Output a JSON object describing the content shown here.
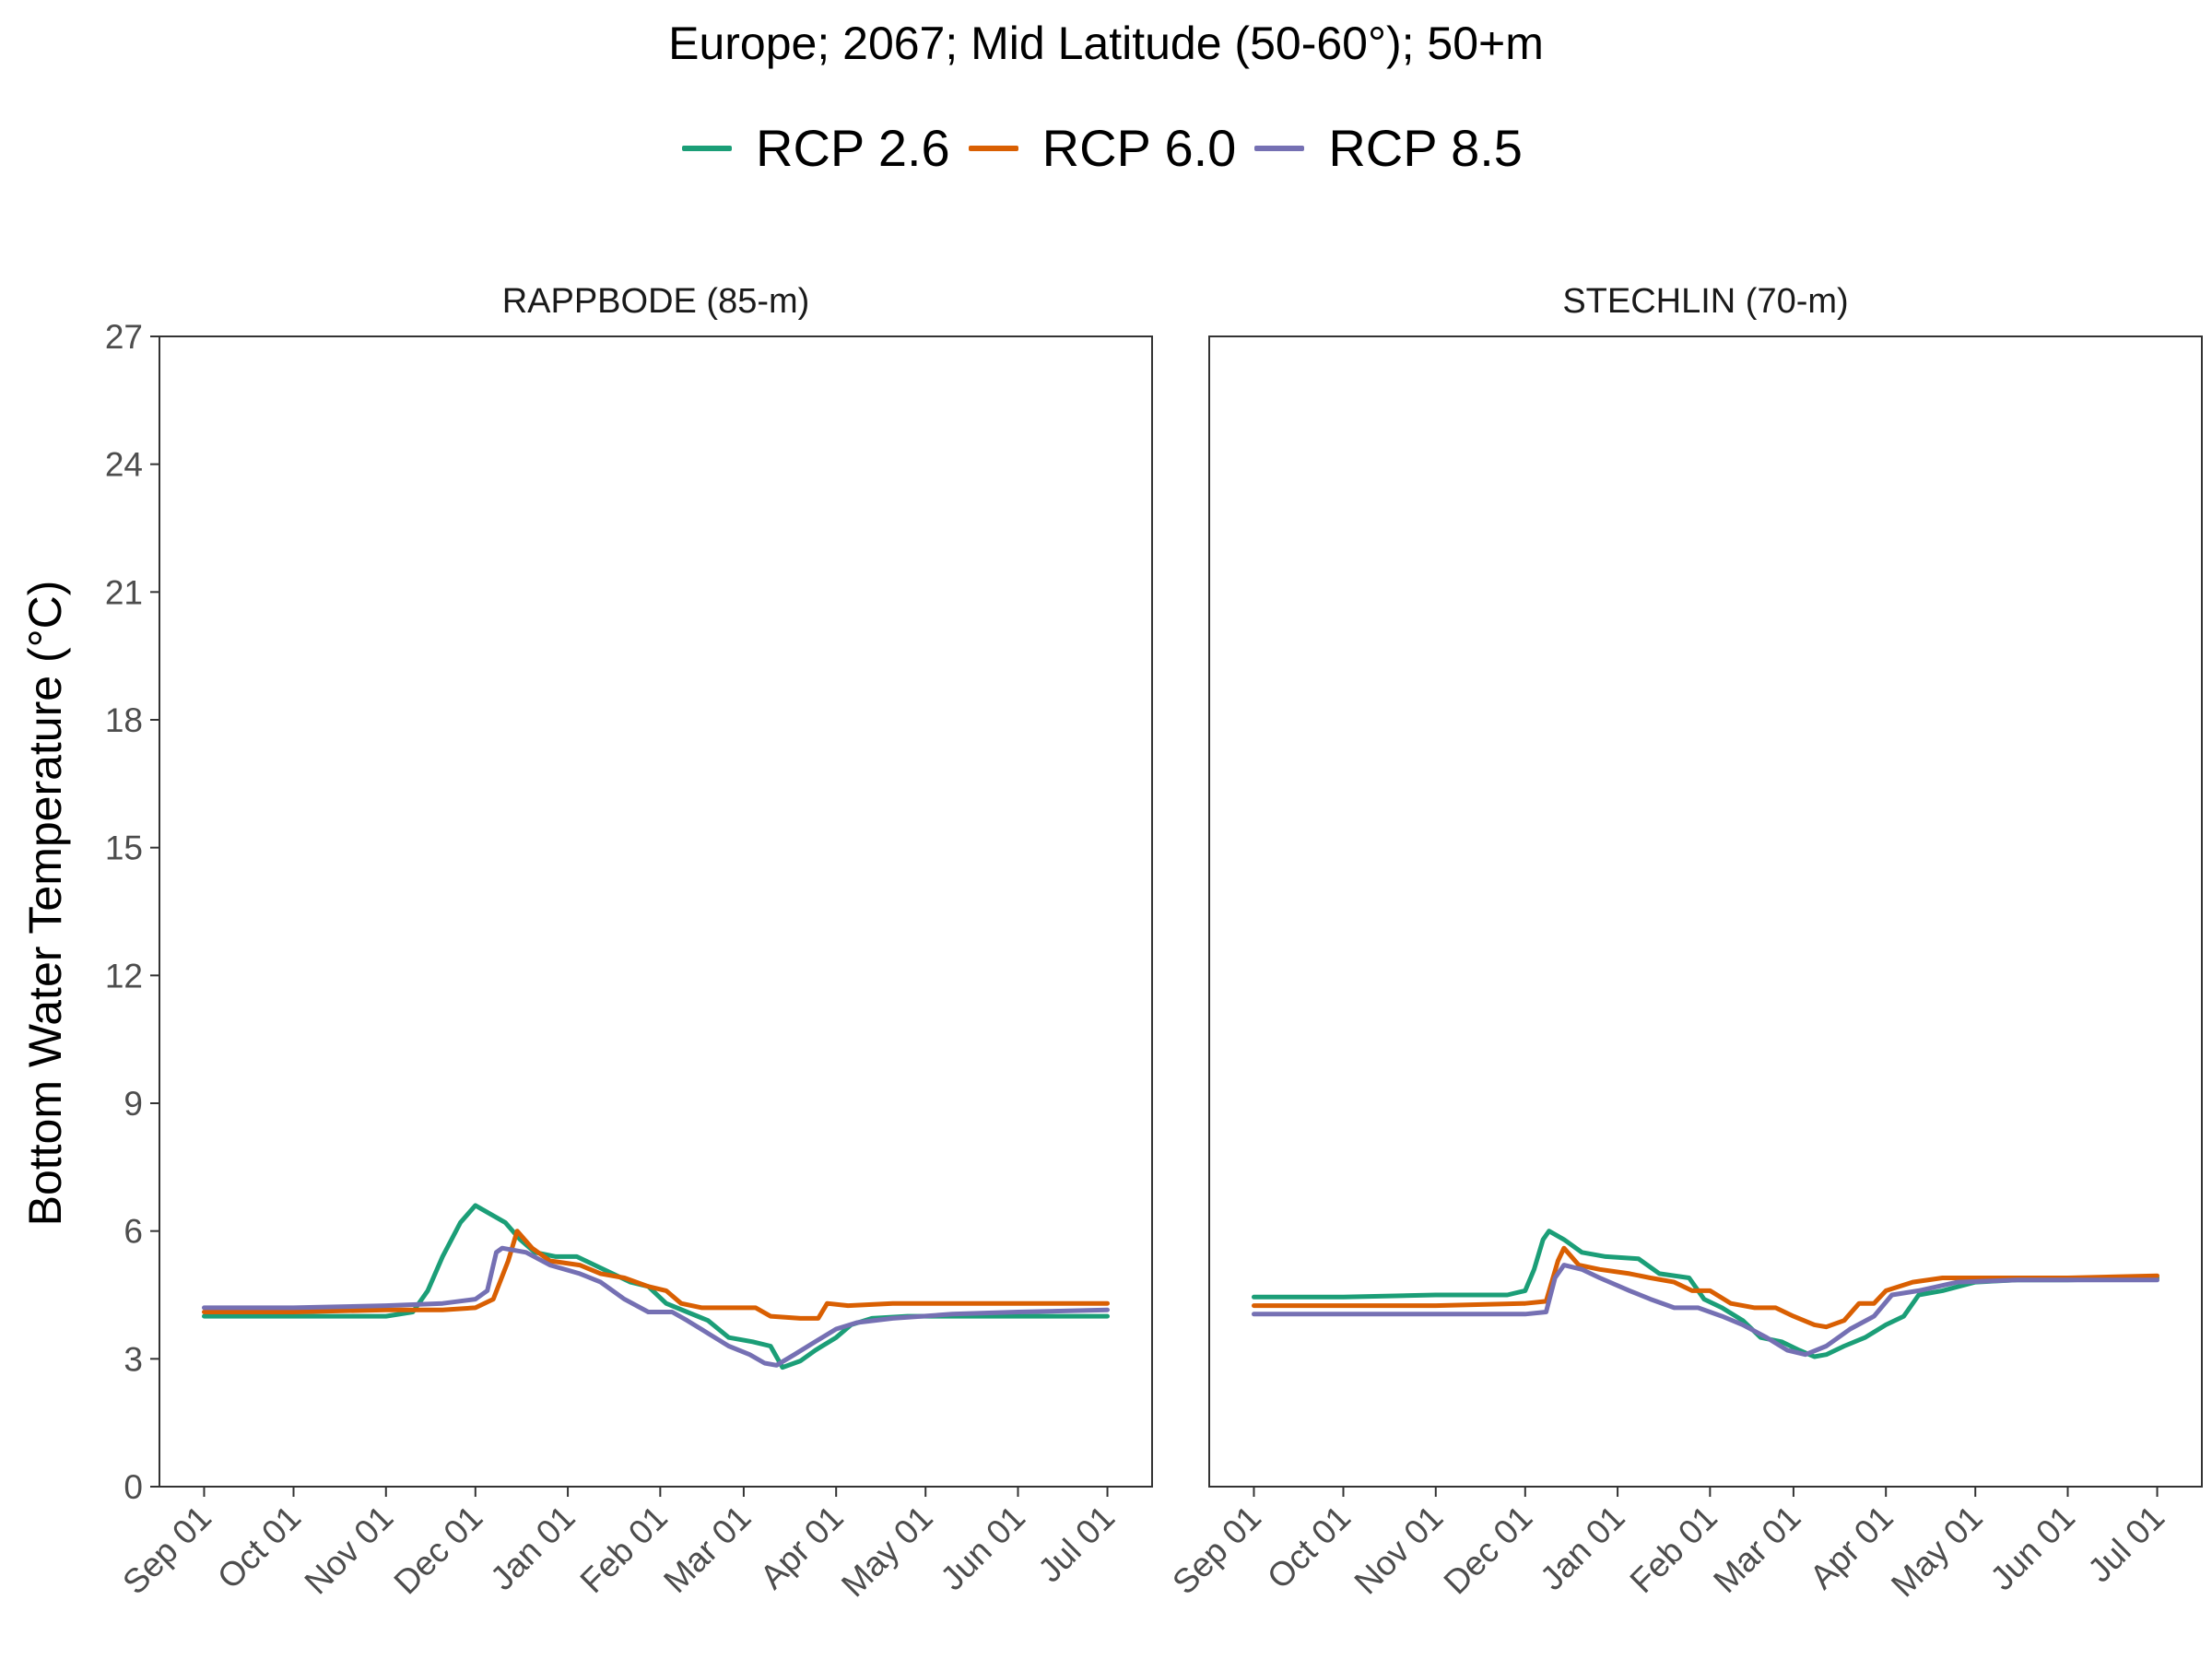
{
  "title": "Europe;  2067;  Mid Latitude (50-60°);  50+m",
  "legend": {
    "items": [
      {
        "label": "RCP 2.6",
        "color": "#1b9e77"
      },
      {
        "label": "RCP 6.0",
        "color": "#d95f02"
      },
      {
        "label": "RCP 8.5",
        "color": "#7570b3"
      }
    ]
  },
  "ylabel": "Bottom Water Temperature (°C)",
  "chart_data": {
    "type": "line",
    "ylabel": "Bottom Water Temperature (°C)",
    "ylim": [
      0,
      27
    ],
    "yticks": [
      0,
      3,
      6,
      9,
      12,
      15,
      18,
      21,
      24,
      27
    ],
    "xticks": [
      {
        "date": "2066-09-01",
        "label": "Sep 01"
      },
      {
        "date": "2066-10-01",
        "label": "Oct 01"
      },
      {
        "date": "2066-11-01",
        "label": "Nov 01"
      },
      {
        "date": "2066-12-01",
        "label": "Dec 01"
      },
      {
        "date": "2067-01-01",
        "label": "Jan 01"
      },
      {
        "date": "2067-02-01",
        "label": "Feb 01"
      },
      {
        "date": "2067-03-01",
        "label": "Mar 01"
      },
      {
        "date": "2067-04-01",
        "label": "Apr 01"
      },
      {
        "date": "2067-05-01",
        "label": "May 01"
      },
      {
        "date": "2067-06-01",
        "label": "Jun 01"
      },
      {
        "date": "2067-07-01",
        "label": "Jul 01"
      }
    ],
    "grid": false,
    "legend_position": "top",
    "panels": [
      {
        "label": "RAPPBODE (85-m)",
        "series": [
          {
            "name": "RCP 2.6",
            "color": "#1b9e77",
            "points": [
              [
                "2066-09-01",
                4.0
              ],
              [
                "2066-10-01",
                4.0
              ],
              [
                "2066-11-01",
                4.0
              ],
              [
                "2066-11-10",
                4.1
              ],
              [
                "2066-11-15",
                4.6
              ],
              [
                "2066-11-20",
                5.4
              ],
              [
                "2066-11-26",
                6.2
              ],
              [
                "2066-12-01",
                6.6
              ],
              [
                "2066-12-06",
                6.4
              ],
              [
                "2066-12-11",
                6.2
              ],
              [
                "2066-12-16",
                5.8
              ],
              [
                "2066-12-21",
                5.5
              ],
              [
                "2066-12-28",
                5.4
              ],
              [
                "2067-01-04",
                5.4
              ],
              [
                "2067-01-10",
                5.2
              ],
              [
                "2067-01-16",
                5.0
              ],
              [
                "2067-01-22",
                4.8
              ],
              [
                "2067-01-28",
                4.7
              ],
              [
                "2067-02-03",
                4.3
              ],
              [
                "2067-02-10",
                4.1
              ],
              [
                "2067-02-17",
                3.9
              ],
              [
                "2067-02-24",
                3.5
              ],
              [
                "2067-03-04",
                3.4
              ],
              [
                "2067-03-10",
                3.3
              ],
              [
                "2067-03-14",
                2.8
              ],
              [
                "2067-03-20",
                2.95
              ],
              [
                "2067-03-25",
                3.2
              ],
              [
                "2067-04-01",
                3.5
              ],
              [
                "2067-04-06",
                3.8
              ],
              [
                "2067-04-13",
                3.95
              ],
              [
                "2067-04-25",
                4.0
              ],
              [
                "2067-05-15",
                4.0
              ],
              [
                "2067-06-15",
                4.0
              ],
              [
                "2067-07-01",
                4.0
              ]
            ]
          },
          {
            "name": "RCP 6.0",
            "color": "#d95f02",
            "points": [
              [
                "2066-09-01",
                4.1
              ],
              [
                "2066-10-01",
                4.1
              ],
              [
                "2066-11-01",
                4.15
              ],
              [
                "2066-11-20",
                4.15
              ],
              [
                "2066-12-01",
                4.2
              ],
              [
                "2066-12-07",
                4.4
              ],
              [
                "2066-12-12",
                5.3
              ],
              [
                "2066-12-15",
                6.0
              ],
              [
                "2066-12-20",
                5.6
              ],
              [
                "2066-12-26",
                5.3
              ],
              [
                "2067-01-05",
                5.2
              ],
              [
                "2067-01-12",
                5.0
              ],
              [
                "2067-01-20",
                4.9
              ],
              [
                "2067-01-28",
                4.7
              ],
              [
                "2067-02-03",
                4.6
              ],
              [
                "2067-02-08",
                4.3
              ],
              [
                "2067-02-15",
                4.2
              ],
              [
                "2067-02-25",
                4.2
              ],
              [
                "2067-03-05",
                4.2
              ],
              [
                "2067-03-10",
                4.0
              ],
              [
                "2067-03-20",
                3.95
              ],
              [
                "2067-03-26",
                3.95
              ],
              [
                "2067-03-29",
                4.3
              ],
              [
                "2067-04-05",
                4.25
              ],
              [
                "2067-04-20",
                4.3
              ],
              [
                "2067-05-10",
                4.3
              ],
              [
                "2067-06-01",
                4.3
              ],
              [
                "2067-07-01",
                4.3
              ]
            ]
          },
          {
            "name": "RCP 8.5",
            "color": "#7570b3",
            "points": [
              [
                "2066-09-01",
                4.2
              ],
              [
                "2066-10-01",
                4.2
              ],
              [
                "2066-11-01",
                4.25
              ],
              [
                "2066-11-20",
                4.3
              ],
              [
                "2066-12-01",
                4.4
              ],
              [
                "2066-12-05",
                4.6
              ],
              [
                "2066-12-08",
                5.5
              ],
              [
                "2066-12-10",
                5.6
              ],
              [
                "2066-12-18",
                5.5
              ],
              [
                "2066-12-26",
                5.2
              ],
              [
                "2067-01-05",
                5.0
              ],
              [
                "2067-01-12",
                4.8
              ],
              [
                "2067-01-20",
                4.4
              ],
              [
                "2067-01-28",
                4.1
              ],
              [
                "2067-02-05",
                4.1
              ],
              [
                "2067-02-10",
                3.9
              ],
              [
                "2067-02-17",
                3.6
              ],
              [
                "2067-02-24",
                3.3
              ],
              [
                "2067-03-03",
                3.1
              ],
              [
                "2067-03-08",
                2.9
              ],
              [
                "2067-03-12",
                2.85
              ],
              [
                "2067-03-18",
                3.1
              ],
              [
                "2067-03-25",
                3.4
              ],
              [
                "2067-04-01",
                3.7
              ],
              [
                "2067-04-08",
                3.85
              ],
              [
                "2067-04-20",
                3.95
              ],
              [
                "2067-05-10",
                4.05
              ],
              [
                "2067-06-01",
                4.1
              ],
              [
                "2067-07-01",
                4.15
              ]
            ]
          }
        ]
      },
      {
        "label": "STECHLIN (70-m)",
        "series": [
          {
            "name": "RCP 2.6",
            "color": "#1b9e77",
            "points": [
              [
                "2066-09-01",
                4.45
              ],
              [
                "2066-10-01",
                4.45
              ],
              [
                "2066-11-01",
                4.5
              ],
              [
                "2066-11-25",
                4.5
              ],
              [
                "2066-12-01",
                4.6
              ],
              [
                "2066-12-04",
                5.1
              ],
              [
                "2066-12-07",
                5.8
              ],
              [
                "2066-12-09",
                6.0
              ],
              [
                "2066-12-14",
                5.8
              ],
              [
                "2066-12-20",
                5.5
              ],
              [
                "2066-12-28",
                5.4
              ],
              [
                "2067-01-08",
                5.35
              ],
              [
                "2067-01-15",
                5.0
              ],
              [
                "2067-01-25",
                4.9
              ],
              [
                "2067-01-30",
                4.4
              ],
              [
                "2067-02-05",
                4.2
              ],
              [
                "2067-02-12",
                3.9
              ],
              [
                "2067-02-18",
                3.5
              ],
              [
                "2067-02-25",
                3.4
              ],
              [
                "2067-03-03",
                3.2
              ],
              [
                "2067-03-08",
                3.05
              ],
              [
                "2067-03-12",
                3.1
              ],
              [
                "2067-03-18",
                3.3
              ],
              [
                "2067-03-25",
                3.5
              ],
              [
                "2067-04-01",
                3.8
              ],
              [
                "2067-04-07",
                4.0
              ],
              [
                "2067-04-12",
                4.5
              ],
              [
                "2067-04-20",
                4.6
              ],
              [
                "2067-05-01",
                4.8
              ],
              [
                "2067-05-15",
                4.85
              ],
              [
                "2067-06-01",
                4.85
              ],
              [
                "2067-07-01",
                4.9
              ]
            ]
          },
          {
            "name": "RCP 6.0",
            "color": "#d95f02",
            "points": [
              [
                "2066-09-01",
                4.25
              ],
              [
                "2066-10-01",
                4.25
              ],
              [
                "2066-11-01",
                4.25
              ],
              [
                "2066-12-01",
                4.3
              ],
              [
                "2066-12-08",
                4.35
              ],
              [
                "2066-12-12",
                5.3
              ],
              [
                "2066-12-14",
                5.6
              ],
              [
                "2066-12-19",
                5.2
              ],
              [
                "2066-12-26",
                5.1
              ],
              [
                "2067-01-05",
                5.0
              ],
              [
                "2067-01-12",
                4.9
              ],
              [
                "2067-01-20",
                4.8
              ],
              [
                "2067-01-26",
                4.6
              ],
              [
                "2067-02-01",
                4.6
              ],
              [
                "2067-02-08",
                4.3
              ],
              [
                "2067-02-16",
                4.2
              ],
              [
                "2067-02-23",
                4.2
              ],
              [
                "2067-03-01",
                4.0
              ],
              [
                "2067-03-08",
                3.8
              ],
              [
                "2067-03-12",
                3.75
              ],
              [
                "2067-03-18",
                3.9
              ],
              [
                "2067-03-23",
                4.3
              ],
              [
                "2067-03-28",
                4.3
              ],
              [
                "2067-04-01",
                4.6
              ],
              [
                "2067-04-10",
                4.8
              ],
              [
                "2067-04-20",
                4.9
              ],
              [
                "2067-05-10",
                4.9
              ],
              [
                "2067-06-01",
                4.9
              ],
              [
                "2067-07-01",
                4.95
              ]
            ]
          },
          {
            "name": "RCP 8.5",
            "color": "#7570b3",
            "points": [
              [
                "2066-09-01",
                4.05
              ],
              [
                "2066-10-01",
                4.05
              ],
              [
                "2066-11-01",
                4.05
              ],
              [
                "2066-12-01",
                4.05
              ],
              [
                "2066-12-08",
                4.1
              ],
              [
                "2066-12-11",
                4.9
              ],
              [
                "2066-12-14",
                5.2
              ],
              [
                "2066-12-20",
                5.1
              ],
              [
                "2066-12-26",
                4.9
              ],
              [
                "2067-01-05",
                4.6
              ],
              [
                "2067-01-12",
                4.4
              ],
              [
                "2067-01-20",
                4.2
              ],
              [
                "2067-01-28",
                4.2
              ],
              [
                "2067-02-05",
                4.0
              ],
              [
                "2067-02-12",
                3.8
              ],
              [
                "2067-02-20",
                3.5
              ],
              [
                "2067-02-27",
                3.2
              ],
              [
                "2067-03-05",
                3.1
              ],
              [
                "2067-03-12",
                3.3
              ],
              [
                "2067-03-20",
                3.7
              ],
              [
                "2067-03-28",
                4.0
              ],
              [
                "2067-04-03",
                4.5
              ],
              [
                "2067-04-12",
                4.6
              ],
              [
                "2067-04-25",
                4.8
              ],
              [
                "2067-05-15",
                4.85
              ],
              [
                "2067-06-01",
                4.85
              ],
              [
                "2067-07-01",
                4.85
              ]
            ]
          }
        ]
      }
    ]
  }
}
